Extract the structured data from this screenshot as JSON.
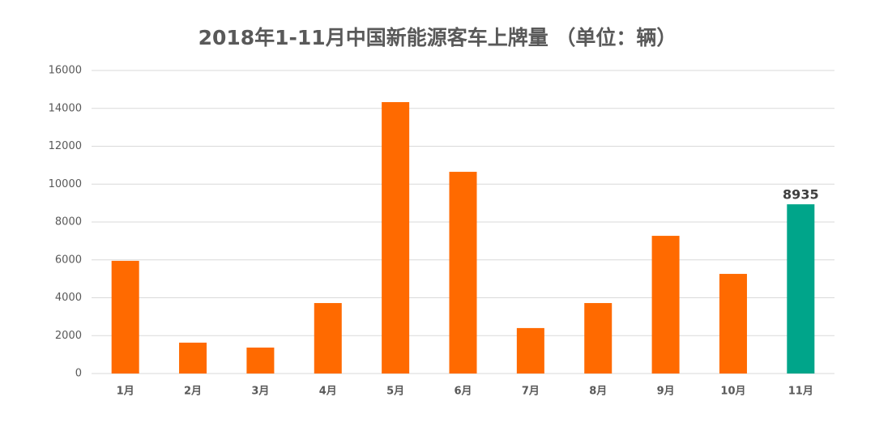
{
  "chart_data": {
    "type": "bar",
    "title": "2018年1-11月中国新能源客车上牌量 （单位：辆）",
    "categories": [
      "1月",
      "2月",
      "3月",
      "4月",
      "5月",
      "6月",
      "7月",
      "8月",
      "9月",
      "10月",
      "11月"
    ],
    "values": [
      5950,
      1630,
      1370,
      3720,
      14330,
      10650,
      2400,
      3720,
      7270,
      5260,
      8935
    ],
    "value_labels": [
      null,
      null,
      null,
      null,
      null,
      null,
      null,
      null,
      null,
      null,
      "8935"
    ],
    "colors": [
      "#ff6a00",
      "#ff6a00",
      "#ff6a00",
      "#ff6a00",
      "#ff6a00",
      "#ff6a00",
      "#ff6a00",
      "#ff6a00",
      "#ff6a00",
      "#ff6a00",
      "#00a58a"
    ],
    "ylim": [
      0,
      16000
    ],
    "yticks": [
      0,
      2000,
      4000,
      6000,
      8000,
      10000,
      12000,
      14000,
      16000
    ],
    "grid": true
  }
}
